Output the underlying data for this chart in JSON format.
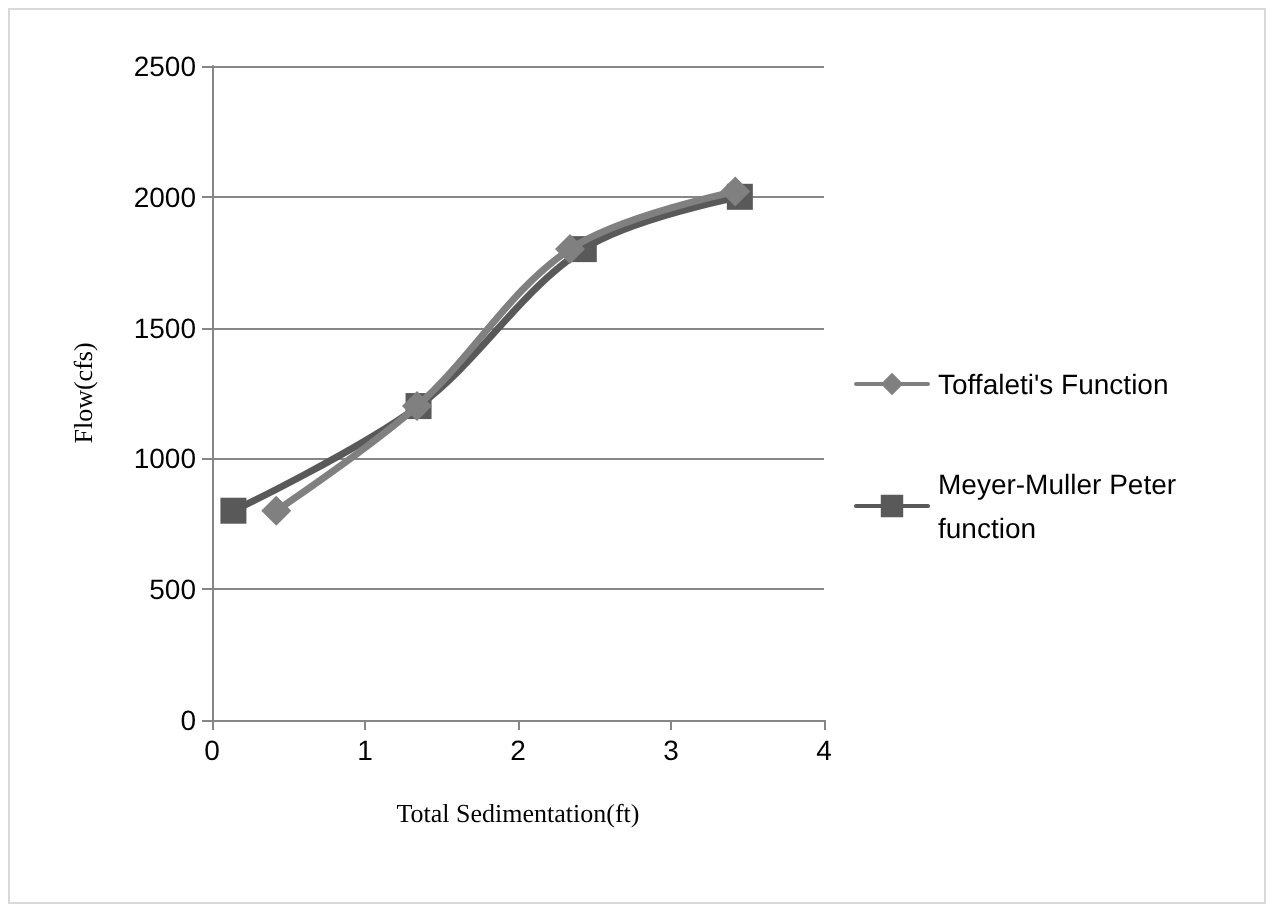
{
  "chart_data": {
    "type": "line",
    "xlabel": "Total Sedimentation(ft)",
    "ylabel": "Flow(cfs)",
    "xlim": [
      0,
      4
    ],
    "xticks": [
      0,
      1,
      2,
      3,
      4
    ],
    "ylim": [
      0,
      2500
    ],
    "yticks": [
      0,
      500,
      1000,
      1500,
      2000,
      2500
    ],
    "grid": "y",
    "legend": "right",
    "series": [
      {
        "name": "Toffaleti's Function",
        "color": "#808080",
        "marker": "diamond",
        "x": [
          0.42,
          1.34,
          2.34,
          3.42
        ],
        "values": [
          800,
          1200,
          1800,
          2020
        ]
      },
      {
        "name": "Meyer-Muller Peter function",
        "color": "#595959",
        "marker": "square",
        "x": [
          0.14,
          1.35,
          2.43,
          3.45
        ],
        "values": [
          800,
          1200,
          1800,
          2000
        ]
      }
    ]
  }
}
